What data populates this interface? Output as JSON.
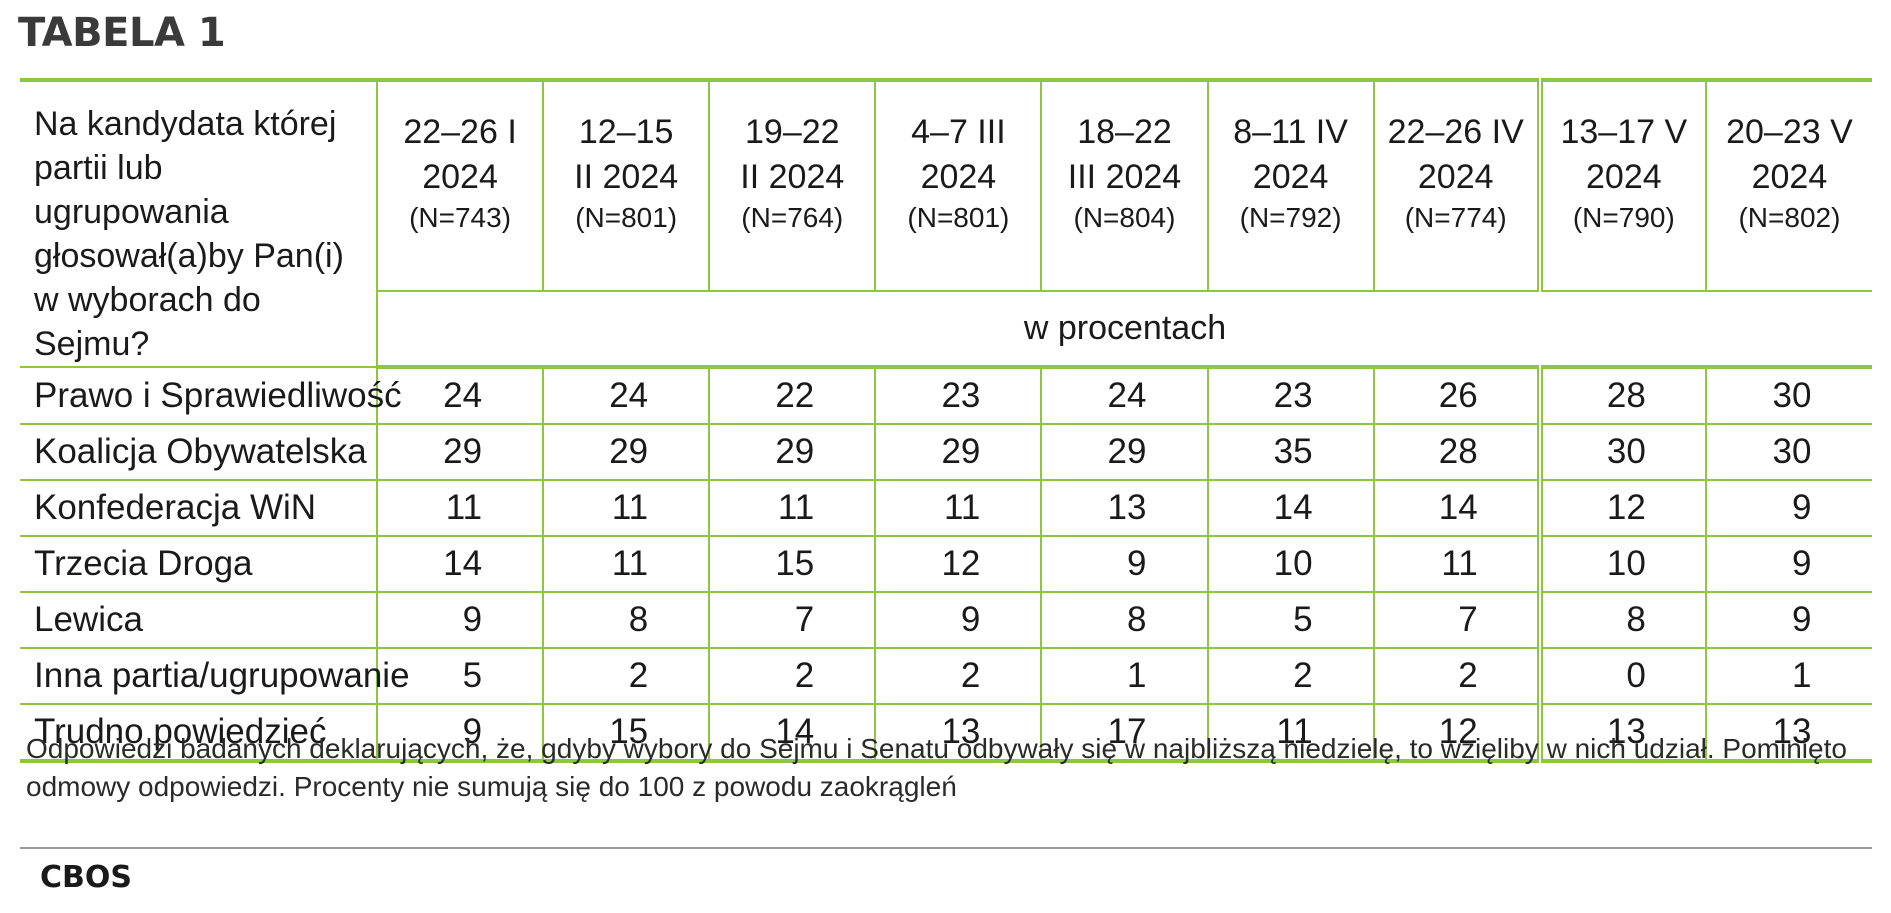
{
  "title": "TABELA 1",
  "table": {
    "question": "Na kandydata której partii lub ugrupowania głosował(a)by Pan(i) w wyborach do Sejmu?",
    "unit": "w procentach",
    "periods": [
      {
        "dates": "22–26 I\n2024",
        "n": "(N=743)"
      },
      {
        "dates": "12–15\nII 2024",
        "n": "(N=801)"
      },
      {
        "dates": "19–22\nII 2024",
        "n": "(N=764)"
      },
      {
        "dates": "4–7 III\n2024",
        "n": "(N=801)"
      },
      {
        "dates": "18–22\nIII 2024",
        "n": "(N=804)"
      },
      {
        "dates": "8–11 IV\n2024",
        "n": "(N=792)"
      },
      {
        "dates": "22–26 IV\n2024",
        "n": "(N=774)"
      },
      {
        "dates": "13–17 V\n2024",
        "n": "(N=790)"
      },
      {
        "dates": "20–23 V\n2024",
        "n": "(N=802)"
      }
    ],
    "rows": [
      {
        "label": "Prawo i Sprawiedliwość",
        "values": [
          "24",
          "24",
          "22",
          "23",
          "24",
          "23",
          "26",
          "28",
          "30"
        ]
      },
      {
        "label": "Koalicja Obywatelska",
        "values": [
          "29",
          "29",
          "29",
          "29",
          "29",
          "35",
          "28",
          "30",
          "30"
        ]
      },
      {
        "label": "Konfederacja WiN",
        "values": [
          "11",
          "11",
          "11",
          "11",
          "13",
          "14",
          "14",
          "12",
          "9"
        ]
      },
      {
        "label": "Trzecia Droga",
        "values": [
          "14",
          "11",
          "15",
          "12",
          "9",
          "10",
          "11",
          "10",
          "9"
        ]
      },
      {
        "label": "Lewica",
        "values": [
          "9",
          "8",
          "7",
          "9",
          "8",
          "5",
          "7",
          "8",
          "9"
        ]
      },
      {
        "label": "Inna partia/ugrupowanie",
        "values": [
          "5",
          "2",
          "2",
          "2",
          "1",
          "2",
          "2",
          "0",
          "1"
        ]
      },
      {
        "label": "Trudno powiedzieć",
        "values": [
          "9",
          "15",
          "14",
          "13",
          "17",
          "11",
          "12",
          "13",
          "13"
        ]
      }
    ]
  },
  "note": "Odpowiedzi badanych deklarujących, że, gdyby wybory do Sejmu i Senatu odbywały się w najbliższą niedzielę, to wzięliby w nich udział. Pominięto odmowy odpowiedzi. Procenty nie sumują się do 100 z powodu zaokrągleń",
  "source": "CBOS",
  "colors": {
    "accent": "#8dc63f",
    "rule": "#9a9a9a",
    "text": "#1a1a1a"
  }
}
